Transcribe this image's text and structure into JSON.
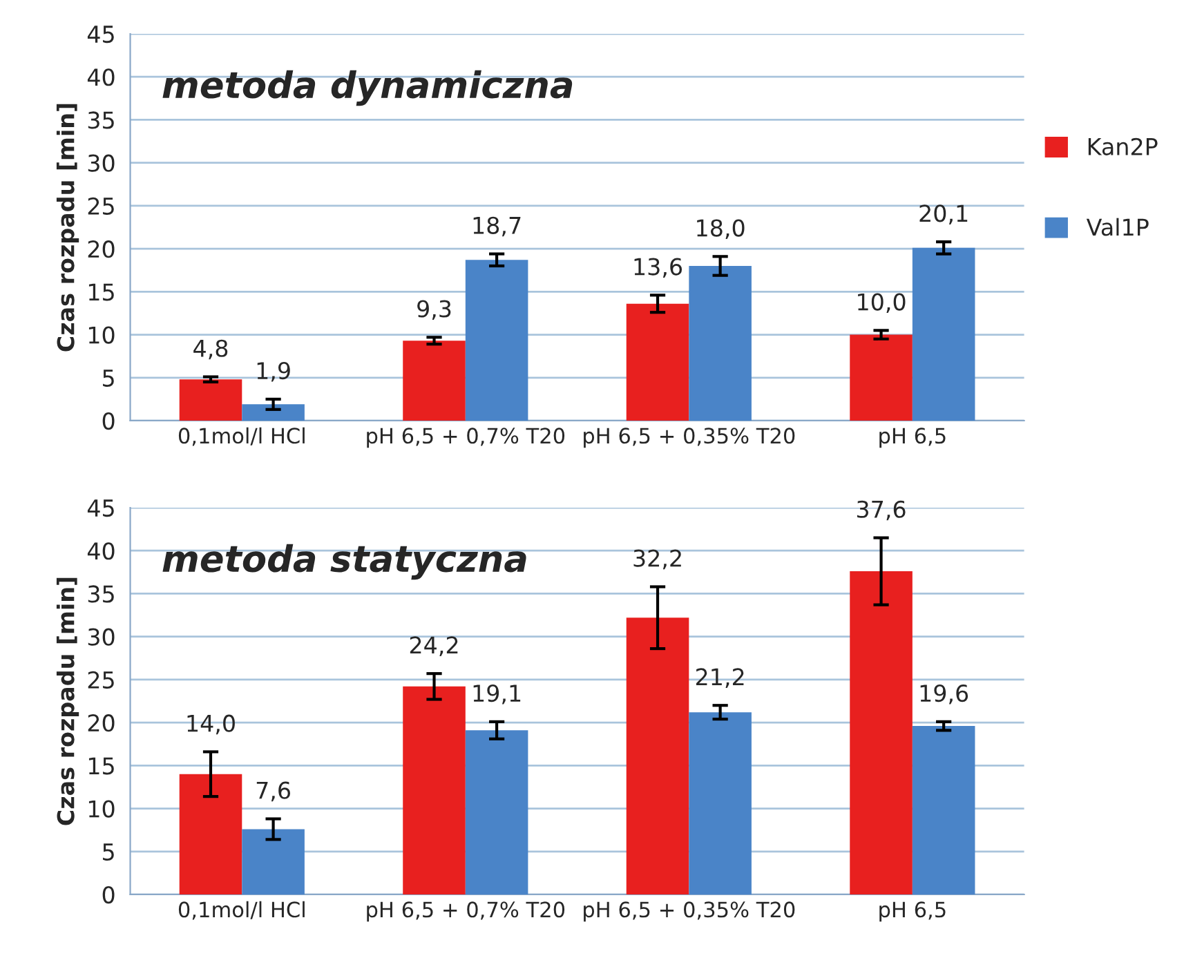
{
  "chart_data": [
    {
      "type": "bar",
      "title": "metoda dynamiczna",
      "ylabel": "Czas rozpadu [min]",
      "categories": [
        "0,1mol/l HCl",
        "pH 6,5 + 0,7% T20",
        "pH 6,5 + 0,35% T20",
        "pH 6,5"
      ],
      "series": [
        {
          "name": "Kan2P",
          "color": "#e8201f",
          "values": [
            4.8,
            9.3,
            13.6,
            10.0
          ],
          "errors": [
            0.3,
            0.4,
            1.0,
            0.5
          ],
          "value_labels": [
            "4,8",
            "9,3",
            "13,6",
            "10,0"
          ]
        },
        {
          "name": "Val1P",
          "color": "#4a84c8",
          "values": [
            1.9,
            18.7,
            18.0,
            20.1
          ],
          "errors": [
            0.6,
            0.7,
            1.1,
            0.7
          ],
          "value_labels": [
            "1,9",
            "18,7",
            "18,0",
            "20,1"
          ]
        }
      ],
      "ylim": [
        0,
        45
      ],
      "yticks": [
        0,
        5,
        10,
        15,
        20,
        25,
        30,
        35,
        40,
        45
      ],
      "grid": "y",
      "legend": "right"
    },
    {
      "type": "bar",
      "title": "metoda statyczna",
      "ylabel": "Czas rozpadu [min]",
      "categories": [
        "0,1mol/l HCl",
        "pH 6,5 + 0,7% T20",
        "pH 6,5 + 0,35% T20",
        "pH 6,5"
      ],
      "series": [
        {
          "color": "#e8201f",
          "values": [
            14.0,
            24.2,
            32.2,
            37.6
          ],
          "errors": [
            2.6,
            1.5,
            3.6,
            3.9
          ],
          "value_labels": [
            "14,0",
            "24,2",
            "32,2",
            "37,6"
          ]
        },
        {
          "color": "#4a84c8",
          "values": [
            7.6,
            19.1,
            21.2,
            19.6
          ],
          "errors": [
            1.2,
            1.0,
            0.8,
            0.5
          ],
          "value_labels": [
            "7,6",
            "19,1",
            "21,2",
            "19,6"
          ]
        }
      ],
      "ylim": [
        0,
        45
      ],
      "yticks": [
        0,
        5,
        10,
        15,
        20,
        25,
        30,
        35,
        40,
        45
      ],
      "grid": "y",
      "legend": false
    }
  ]
}
